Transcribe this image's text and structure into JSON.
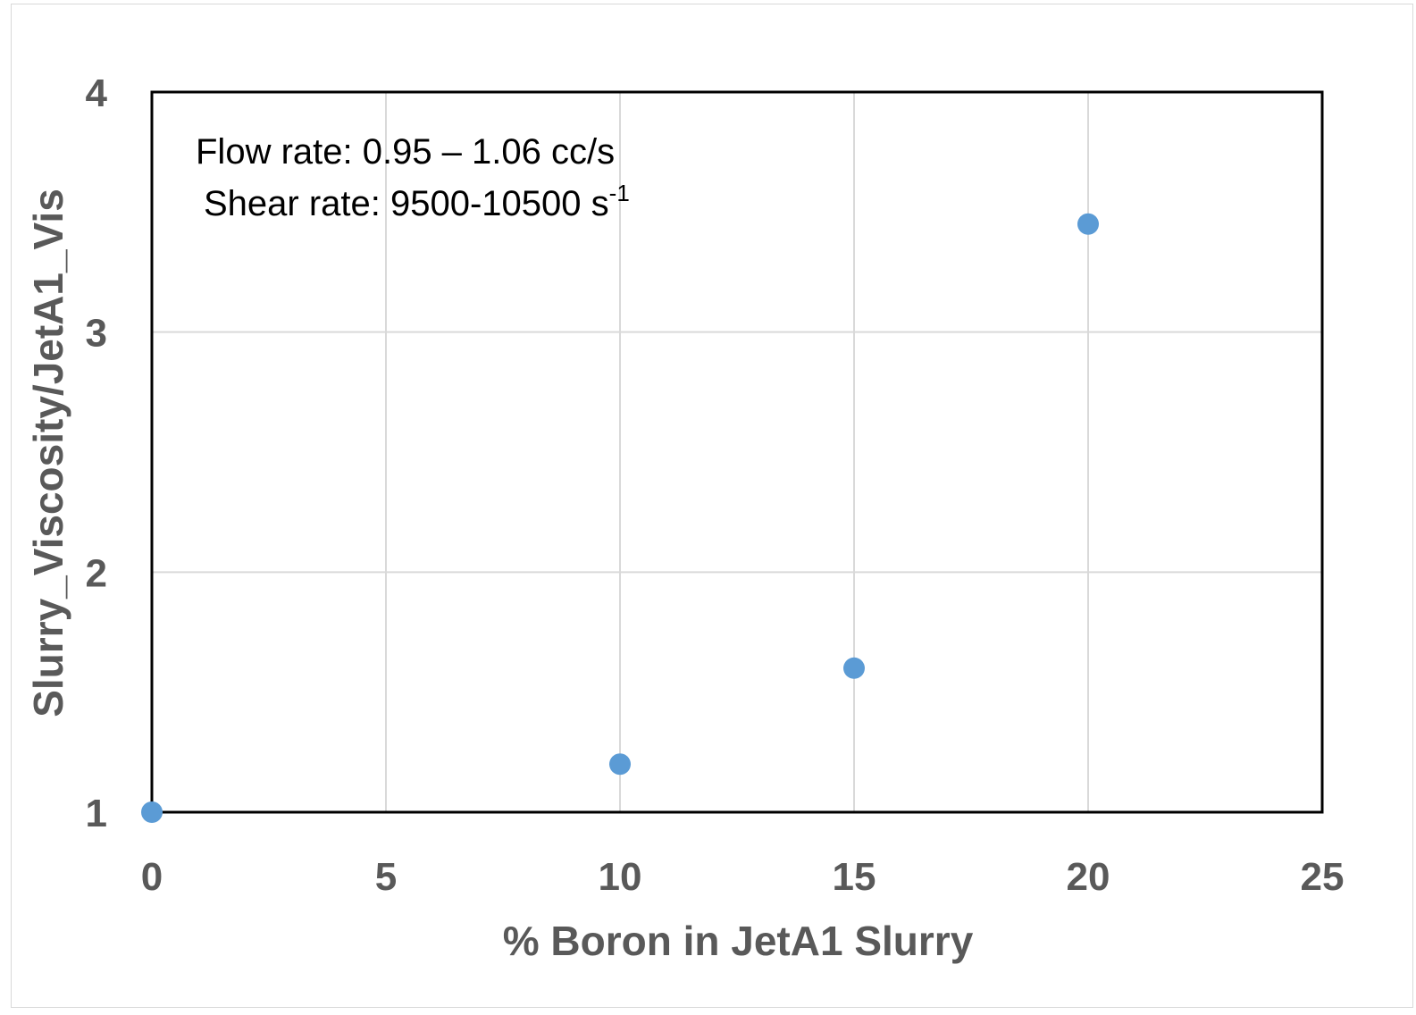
{
  "chart_data": {
    "type": "scatter",
    "title": "",
    "xlabel": "% Boron in JetA1 Slurry",
    "ylabel": "Slurry_Viscosity/JetA1_Vis",
    "xlim": [
      0,
      25
    ],
    "ylim": [
      1,
      4
    ],
    "xticks": [
      "0",
      "5",
      "10",
      "15",
      "20",
      "25"
    ],
    "yticks": [
      "1",
      "2",
      "3",
      "4"
    ],
    "grid": true,
    "legend": "none",
    "series": [
      {
        "color": "#5B9BD5",
        "x": [
          0,
          10,
          15,
          20
        ],
        "y": [
          1.0,
          1.2,
          1.6,
          3.45
        ]
      }
    ],
    "annotations": {
      "line1": "Flow rate: 0.95 – 1.06 cc/s",
      "line2_main": "Shear rate: 9500-10500 s",
      "line2_sup": "-1"
    }
  }
}
